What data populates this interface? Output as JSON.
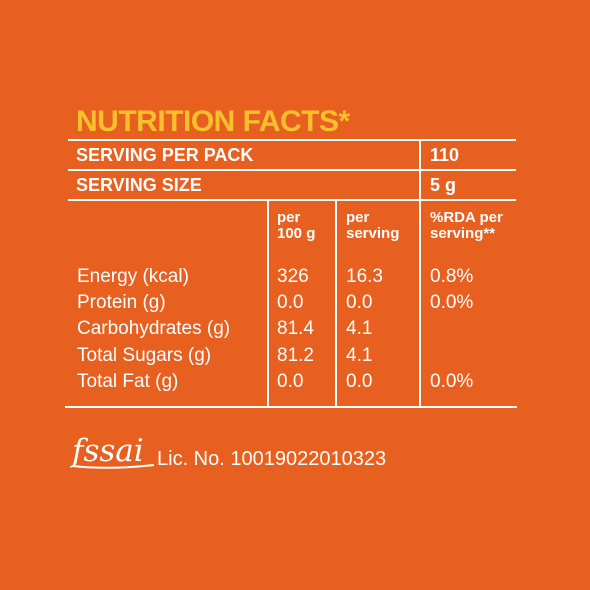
{
  "colors": {
    "background": "#E8601F",
    "title": "#F9C02D",
    "text": "#FFFFFF"
  },
  "title": "NUTRITION FACTS*",
  "serving_per_pack": {
    "label": "SERVING PER PACK",
    "value": "110"
  },
  "serving_size": {
    "label": "SERVING SIZE",
    "value": "5 g"
  },
  "columns": {
    "per100_line1": "per",
    "per100_line2": "100 g",
    "perserving_line1": "per",
    "perserving_line2": "serving",
    "rda_line1": "%RDA per",
    "rda_line2": "serving**"
  },
  "rows": [
    {
      "name": "Energy (kcal)",
      "per100": "326",
      "perserving": "16.3",
      "rda": "0.8%"
    },
    {
      "name": "Protein (g)",
      "per100": "0.0",
      "perserving": "0.0",
      "rda": "0.0%"
    },
    {
      "name": "Carbohydrates (g)",
      "per100": "81.4",
      "perserving": "4.1",
      "rda": ""
    },
    {
      "name": "Total Sugars (g)",
      "per100": "81.2",
      "perserving": "4.1",
      "rda": ""
    },
    {
      "name": "Total Fat (g)",
      "per100": "0.0",
      "perserving": "0.0",
      "rda": "0.0%"
    }
  ],
  "footer": {
    "logo_text": "fssai",
    "license": "Lic. No. 10019022010323"
  }
}
